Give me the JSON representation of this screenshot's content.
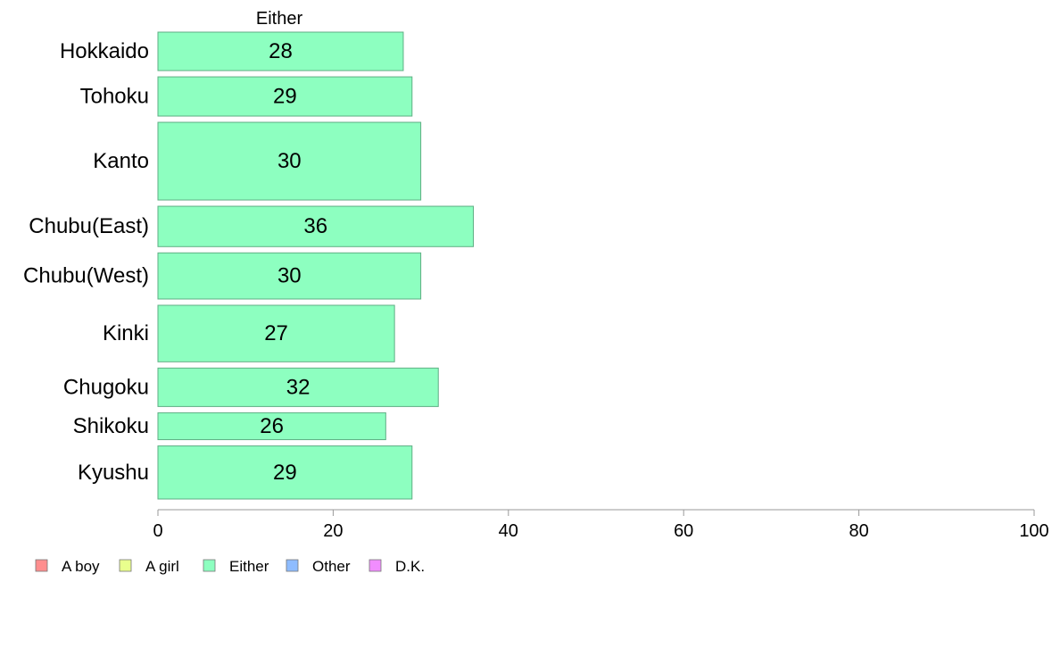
{
  "chart_data": {
    "type": "bar",
    "orientation": "horizontal",
    "panel_title": "Either",
    "categories": [
      "Hokkaido",
      "Tohoku",
      "Kanto",
      "Chubu(East)",
      "Chubu(West)",
      "Kinki",
      "Chugoku",
      "Shikoku",
      "Kyushu"
    ],
    "relative_widths": [
      1,
      1.02,
      2.02,
      1.05,
      1.2,
      1.47,
      1.0,
      0.7,
      1.38
    ],
    "series": [
      {
        "name": "Either",
        "values": [
          28,
          29,
          30,
          36,
          30,
          27,
          32,
          26,
          29
        ],
        "color": "#8dffc0"
      }
    ],
    "xlim": [
      0,
      100
    ],
    "xticks": [
      0,
      20,
      40,
      60,
      80,
      100
    ],
    "grid": false,
    "legend_position": "bottom-left",
    "legend": [
      {
        "label": "A boy",
        "color": "#ff8e8e"
      },
      {
        "label": "A girl",
        "color": "#e9ff8d"
      },
      {
        "label": "Either",
        "color": "#8dffc0"
      },
      {
        "label": "Other",
        "color": "#8ebcff"
      },
      {
        "label": "D.K.",
        "color": "#f18dff"
      }
    ]
  }
}
